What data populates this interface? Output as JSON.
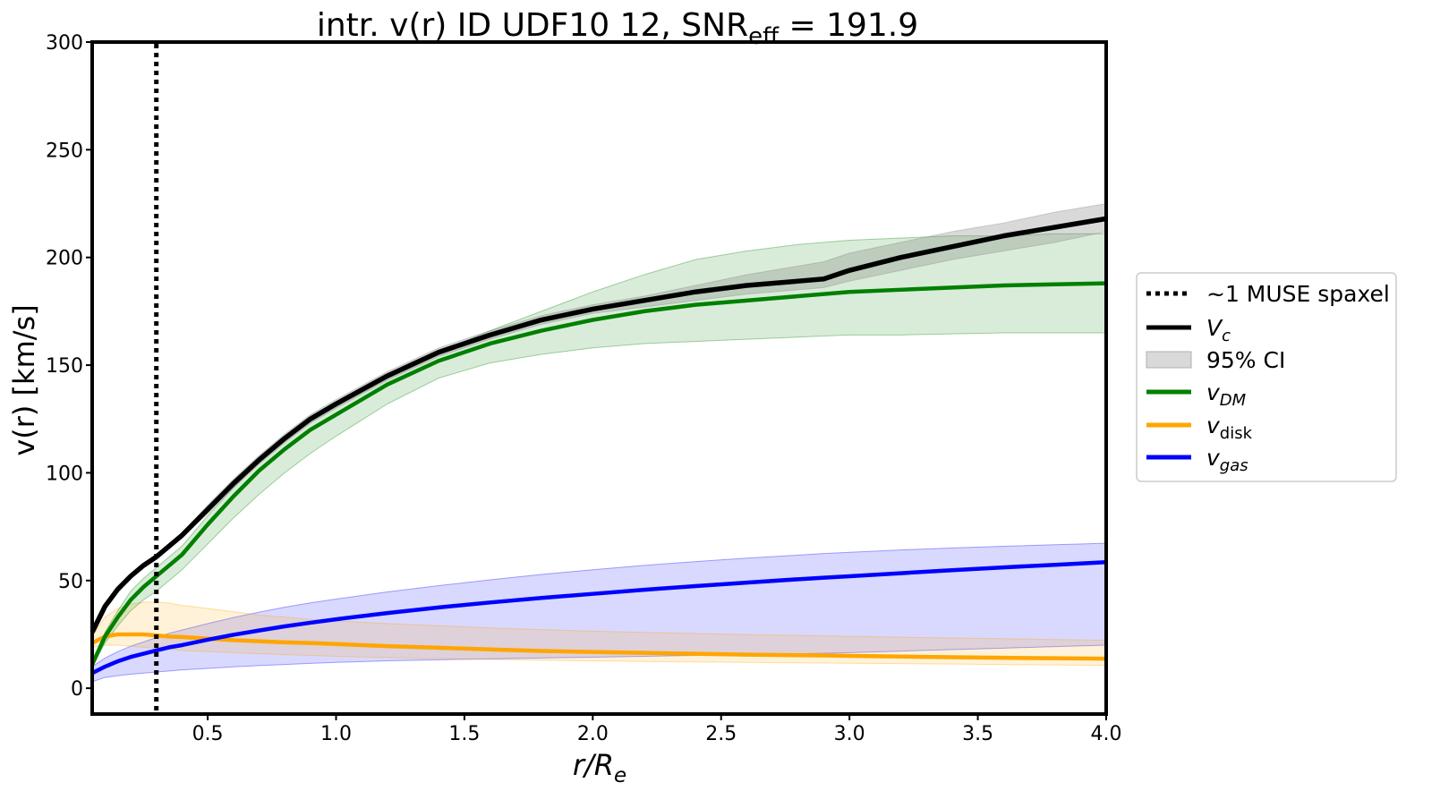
{
  "chart_data": {
    "type": "line",
    "title": {
      "prefix": "intr. v(r) ID UDF10 12, SNR",
      "subscript": "eff",
      "suffix": " = 191.9"
    },
    "xlabel": {
      "main": "r/R",
      "subscript": "e"
    },
    "ylabel": "v(r) [km/s]",
    "xlim": [
      0.05,
      4.0
    ],
    "ylim": [
      -12,
      300
    ],
    "xticks": [
      "0.5",
      "1.0",
      "1.5",
      "2.0",
      "2.5",
      "3.0",
      "3.5",
      "4.0"
    ],
    "yticks": [
      "0",
      "50",
      "100",
      "150",
      "200",
      "250",
      "300"
    ],
    "grid": false,
    "legend_position": "right, outside plot",
    "vline": {
      "name": "~1 MUSE spaxel",
      "x": 0.3,
      "style": "dotted",
      "color": "#000000"
    },
    "x": [
      0.05,
      0.1,
      0.15,
      0.2,
      0.25,
      0.3,
      0.35,
      0.4,
      0.5,
      0.6,
      0.7,
      0.8,
      0.9,
      1.0,
      1.2,
      1.4,
      1.6,
      1.8,
      2.0,
      2.2,
      2.4,
      2.6,
      2.8,
      2.9,
      3.0,
      3.2,
      3.4,
      3.6,
      3.8,
      4.0
    ],
    "series": [
      {
        "name": "V",
        "name_sub": "c",
        "color": "#000000",
        "values": [
          26,
          38,
          46,
          52,
          57,
          61,
          66,
          71,
          83,
          95,
          106,
          116,
          125,
          132,
          145,
          156,
          164,
          171,
          176,
          180,
          184,
          187,
          189,
          190,
          194,
          200,
          205,
          210,
          214,
          218
        ],
        "ci_lower": [
          25,
          37,
          45,
          51,
          56,
          60,
          65,
          70,
          81,
          93,
          104,
          114,
          123,
          130,
          143,
          154,
          162,
          169,
          174,
          177,
          180,
          183,
          185,
          186,
          189,
          194,
          199,
          203,
          207,
          212
        ],
        "ci_upper": [
          27,
          39,
          47,
          53,
          58,
          62,
          67,
          72,
          85,
          97,
          108,
          118,
          127,
          134,
          147,
          158,
          166,
          173,
          178,
          182,
          187,
          192,
          196,
          198,
          202,
          207,
          212,
          216,
          221,
          225
        ]
      },
      {
        "name": "v",
        "name_sub": "DM",
        "color": "#008000",
        "values": [
          11,
          24,
          33,
          41,
          47,
          52,
          57,
          62,
          76,
          89,
          101,
          111,
          120,
          127,
          141,
          152,
          160,
          166,
          171,
          175,
          178,
          180,
          182,
          183,
          184,
          185,
          186,
          187,
          187.5,
          188
        ],
        "ci_lower": [
          10,
          21,
          29,
          36,
          41,
          45,
          50,
          55,
          67,
          79,
          90,
          100,
          109,
          117,
          132,
          144,
          151,
          155,
          158,
          160,
          161,
          162,
          163,
          163.5,
          164,
          164,
          164.5,
          165,
          165,
          165
        ],
        "ci_upper": [
          12,
          26,
          36,
          45,
          51,
          56,
          61,
          66,
          80,
          93,
          105,
          115,
          124,
          131,
          145,
          156,
          166,
          175,
          184,
          192,
          199,
          203,
          206,
          207,
          208,
          209,
          210,
          210,
          211,
          211
        ]
      },
      {
        "name": "v",
        "name_sub": "disk",
        "color": "#FFA500",
        "values": [
          21,
          24,
          25,
          25,
          25,
          24.5,
          24,
          23.8,
          23,
          22.3,
          21.8,
          21.3,
          21,
          20.5,
          19.5,
          18.8,
          18,
          17.3,
          16.8,
          16.4,
          16,
          15.6,
          15.3,
          15.2,
          15,
          14.7,
          14.4,
          14.1,
          13.9,
          13.7
        ],
        "ci_lower": [
          19,
          20,
          20,
          19.5,
          19,
          18.5,
          18,
          17.5,
          17,
          16.5,
          16,
          15.6,
          15.2,
          14.8,
          14.2,
          13.8,
          13.4,
          13,
          12.7,
          12.4,
          12.2,
          12,
          11.8,
          11.7,
          11.6,
          11.4,
          11.2,
          11,
          10.8,
          10.6
        ],
        "ci_upper": [
          24,
          33,
          37,
          39,
          40,
          40,
          39.5,
          38.5,
          37,
          35.5,
          34,
          33,
          32,
          31.3,
          30,
          29,
          28,
          27.2,
          26.5,
          25.9,
          25.4,
          24.9,
          24.5,
          24.3,
          24.1,
          23.7,
          23.3,
          23,
          22.6,
          22.3
        ]
      },
      {
        "name": "v",
        "name_sub": "gas",
        "color": "#0000FF",
        "values": [
          7,
          10,
          12.5,
          14.5,
          16,
          17.5,
          19,
          20,
          22.5,
          24.8,
          26.8,
          28.7,
          30.4,
          32,
          34.9,
          37.5,
          39.8,
          41.9,
          43.8,
          45.7,
          47.4,
          49,
          50.6,
          51.3,
          52,
          53.4,
          54.8,
          56.1,
          57.3,
          58.5
        ],
        "ci_lower": [
          3,
          5,
          5.8,
          6.5,
          7,
          7.5,
          8,
          8.5,
          9.2,
          9.9,
          10.5,
          11,
          11.5,
          12,
          12.7,
          13.2,
          13.6,
          14,
          14.4,
          14.8,
          15.2,
          15.6,
          16,
          16.2,
          16.5,
          17.2,
          17.9,
          18.6,
          19.3,
          20
        ],
        "ci_upper": [
          10,
          14,
          17,
          19.5,
          21.5,
          23.5,
          25.5,
          27,
          30,
          32.8,
          35.3,
          37.6,
          39.6,
          41.4,
          44.7,
          47.6,
          50.3,
          52.8,
          55,
          57,
          58.8,
          60.4,
          61.8,
          62.5,
          63.1,
          64.2,
          65.1,
          65.9,
          66.6,
          67.3
        ]
      }
    ],
    "legend": [
      {
        "label": "~1 MUSE spaxel",
        "kind": "dotted-line",
        "color": "#000000"
      },
      {
        "label": "V",
        "sub": "c",
        "italic": true,
        "kind": "line",
        "color": "#000000"
      },
      {
        "label": "95% CI",
        "kind": "patch",
        "color": "#d9d9d9"
      },
      {
        "label": "v",
        "sub": "DM",
        "italic": true,
        "sub_italic": true,
        "kind": "line",
        "color": "#008000"
      },
      {
        "label": "v",
        "sub": "disk",
        "italic": true,
        "sub_italic": false,
        "kind": "line",
        "color": "#FFA500"
      },
      {
        "label": "v",
        "sub": "gas",
        "italic": true,
        "sub_italic": true,
        "kind": "line",
        "color": "#0000FF"
      }
    ]
  }
}
